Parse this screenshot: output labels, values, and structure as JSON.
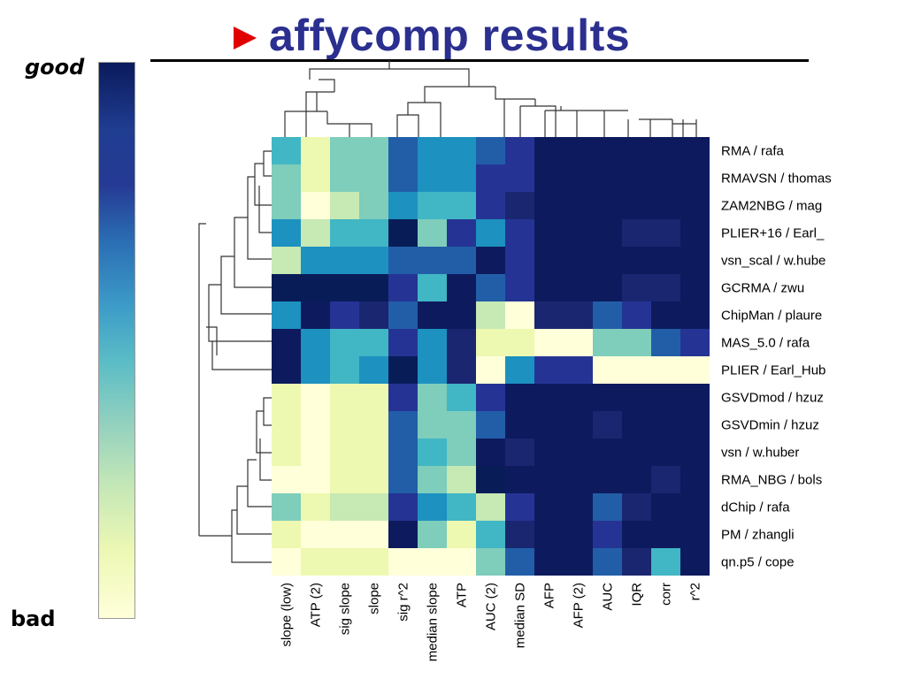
{
  "header": {
    "title": "affycomp results",
    "scale_good": "good",
    "scale_bad": "bad"
  },
  "colors": {
    "title": "#2b2f8f",
    "arrow": "#e00000",
    "palette": [
      "#ffffd9",
      "#edf8b1",
      "#c7e9b4",
      "#7fcdbb",
      "#41b6c4",
      "#1d91c0",
      "#225ea8",
      "#253494",
      "#1a2670",
      "#0d1b5e",
      "#081d58"
    ]
  },
  "chart_data": {
    "type": "heatmap",
    "title": "affycomp results",
    "columns": [
      "slope (low)",
      "ATP (2)",
      "sig slope",
      "slope",
      "sig r^2",
      "median slope",
      "ATP",
      "AUC (2)",
      "median SD",
      "AFP",
      "AFP (2)",
      "AUC",
      "IQR",
      "corr",
      "r^2"
    ],
    "rows": [
      "RMA / rafa",
      "RMAVSN / thomas",
      "ZAM2NBG / mag",
      "PLIER+16 / Earl_",
      "vsn_scal / w.hube",
      "GCRMA / zwu",
      "ChipMan / plaure",
      "MAS_5.0 / rafa",
      "PLIER / Earl_Hub",
      "GSVDmod / hzuz",
      "GSVDmin / hzuz",
      "vsn / w.huber",
      "RMA_NBG / bols",
      "dChip / rafa",
      "PM / zhangli",
      "qn.p5 / cope"
    ],
    "scale": "0 = bad (pale yellow), 10 = good (dark blue)",
    "values": [
      [
        4,
        1,
        3,
        3,
        6,
        5,
        5,
        6,
        7,
        9,
        9,
        9,
        9,
        9,
        9
      ],
      [
        3,
        1,
        3,
        3,
        6,
        5,
        5,
        7,
        7,
        9,
        9,
        9,
        9,
        9,
        9
      ],
      [
        3,
        0,
        2,
        3,
        5,
        4,
        4,
        7,
        8,
        9,
        9,
        9,
        9,
        9,
        9
      ],
      [
        5,
        2,
        4,
        4,
        10,
        3,
        7,
        5,
        7,
        9,
        9,
        9,
        8,
        8,
        9
      ],
      [
        2,
        5,
        5,
        5,
        6,
        6,
        6,
        9,
        7,
        9,
        9,
        9,
        9,
        9,
        9
      ],
      [
        10,
        10,
        10,
        10,
        7,
        4,
        9,
        6,
        7,
        9,
        9,
        9,
        8,
        8,
        9
      ],
      [
        5,
        9,
        7,
        8,
        6,
        9,
        9,
        2,
        0,
        8,
        8,
        6,
        7,
        9,
        9
      ],
      [
        9,
        5,
        4,
        4,
        7,
        5,
        8,
        1,
        1,
        0,
        0,
        3,
        3,
        6,
        7
      ],
      [
        9,
        5,
        4,
        5,
        10,
        5,
        8,
        0,
        5,
        7,
        7,
        0,
        0,
        0,
        0
      ],
      [
        1,
        0,
        1,
        1,
        7,
        3,
        4,
        7,
        9,
        9,
        9,
        9,
        9,
        9,
        9
      ],
      [
        1,
        0,
        1,
        1,
        6,
        3,
        3,
        6,
        9,
        9,
        9,
        8,
        9,
        9,
        9
      ],
      [
        1,
        0,
        1,
        1,
        6,
        4,
        3,
        9,
        8,
        9,
        9,
        9,
        9,
        9,
        9
      ],
      [
        0,
        0,
        1,
        1,
        6,
        3,
        2,
        10,
        9,
        9,
        9,
        9,
        9,
        8,
        9
      ],
      [
        3,
        1,
        2,
        2,
        7,
        5,
        4,
        2,
        7,
        9,
        9,
        6,
        8,
        9,
        9
      ],
      [
        1,
        0,
        0,
        0,
        9,
        3,
        1,
        4,
        8,
        9,
        9,
        7,
        9,
        9,
        9
      ],
      [
        0,
        1,
        1,
        1,
        0,
        0,
        0,
        3,
        6,
        9,
        9,
        6,
        8,
        4,
        9
      ]
    ]
  }
}
